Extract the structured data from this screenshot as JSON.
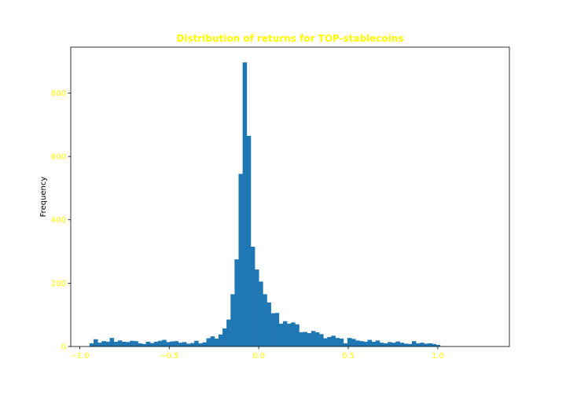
{
  "chart_data": {
    "type": "bar",
    "title": "Distribution of returns for TOP-stablecoins",
    "xlabel": "",
    "ylabel": "Frequency",
    "xlim": [
      -1.05,
      1.4
    ],
    "ylim": [
      0,
      945
    ],
    "x_ticks": [
      "−1.0",
      "−0.5",
      "0.0",
      "0.5",
      "1.0"
    ],
    "x_tick_values": [
      -1.0,
      -0.5,
      0.0,
      0.5,
      1.0
    ],
    "y_ticks": [
      "0",
      "200",
      "400",
      "600",
      "800"
    ],
    "y_tick_values": [
      0,
      200,
      400,
      600,
      800
    ],
    "grid": false,
    "bin_start": -0.945,
    "bin_width": 0.0225,
    "values": [
      10,
      23,
      12,
      17,
      15,
      27,
      15,
      19,
      15,
      14,
      18,
      17,
      10,
      8,
      15,
      11,
      15,
      18,
      21,
      14,
      16,
      17,
      12,
      14,
      9,
      11,
      18,
      10,
      13,
      26,
      32,
      25,
      38,
      57,
      85,
      165,
      275,
      545,
      897,
      665,
      315,
      243,
      205,
      165,
      139,
      105,
      106,
      72,
      80,
      72,
      76,
      70,
      45,
      46,
      42,
      49,
      45,
      39,
      26,
      30,
      34,
      27,
      25,
      10,
      27,
      24,
      19,
      17,
      15,
      21,
      15,
      19,
      12,
      10,
      14,
      12,
      16,
      12,
      9,
      8,
      17,
      10,
      12,
      9,
      10,
      8,
      5
    ],
    "colors": {
      "bar": "#1f77b4",
      "title": "#ffff00",
      "tick_label": "#ffff00",
      "axis_label": "#000000",
      "spine": "#000000"
    }
  }
}
